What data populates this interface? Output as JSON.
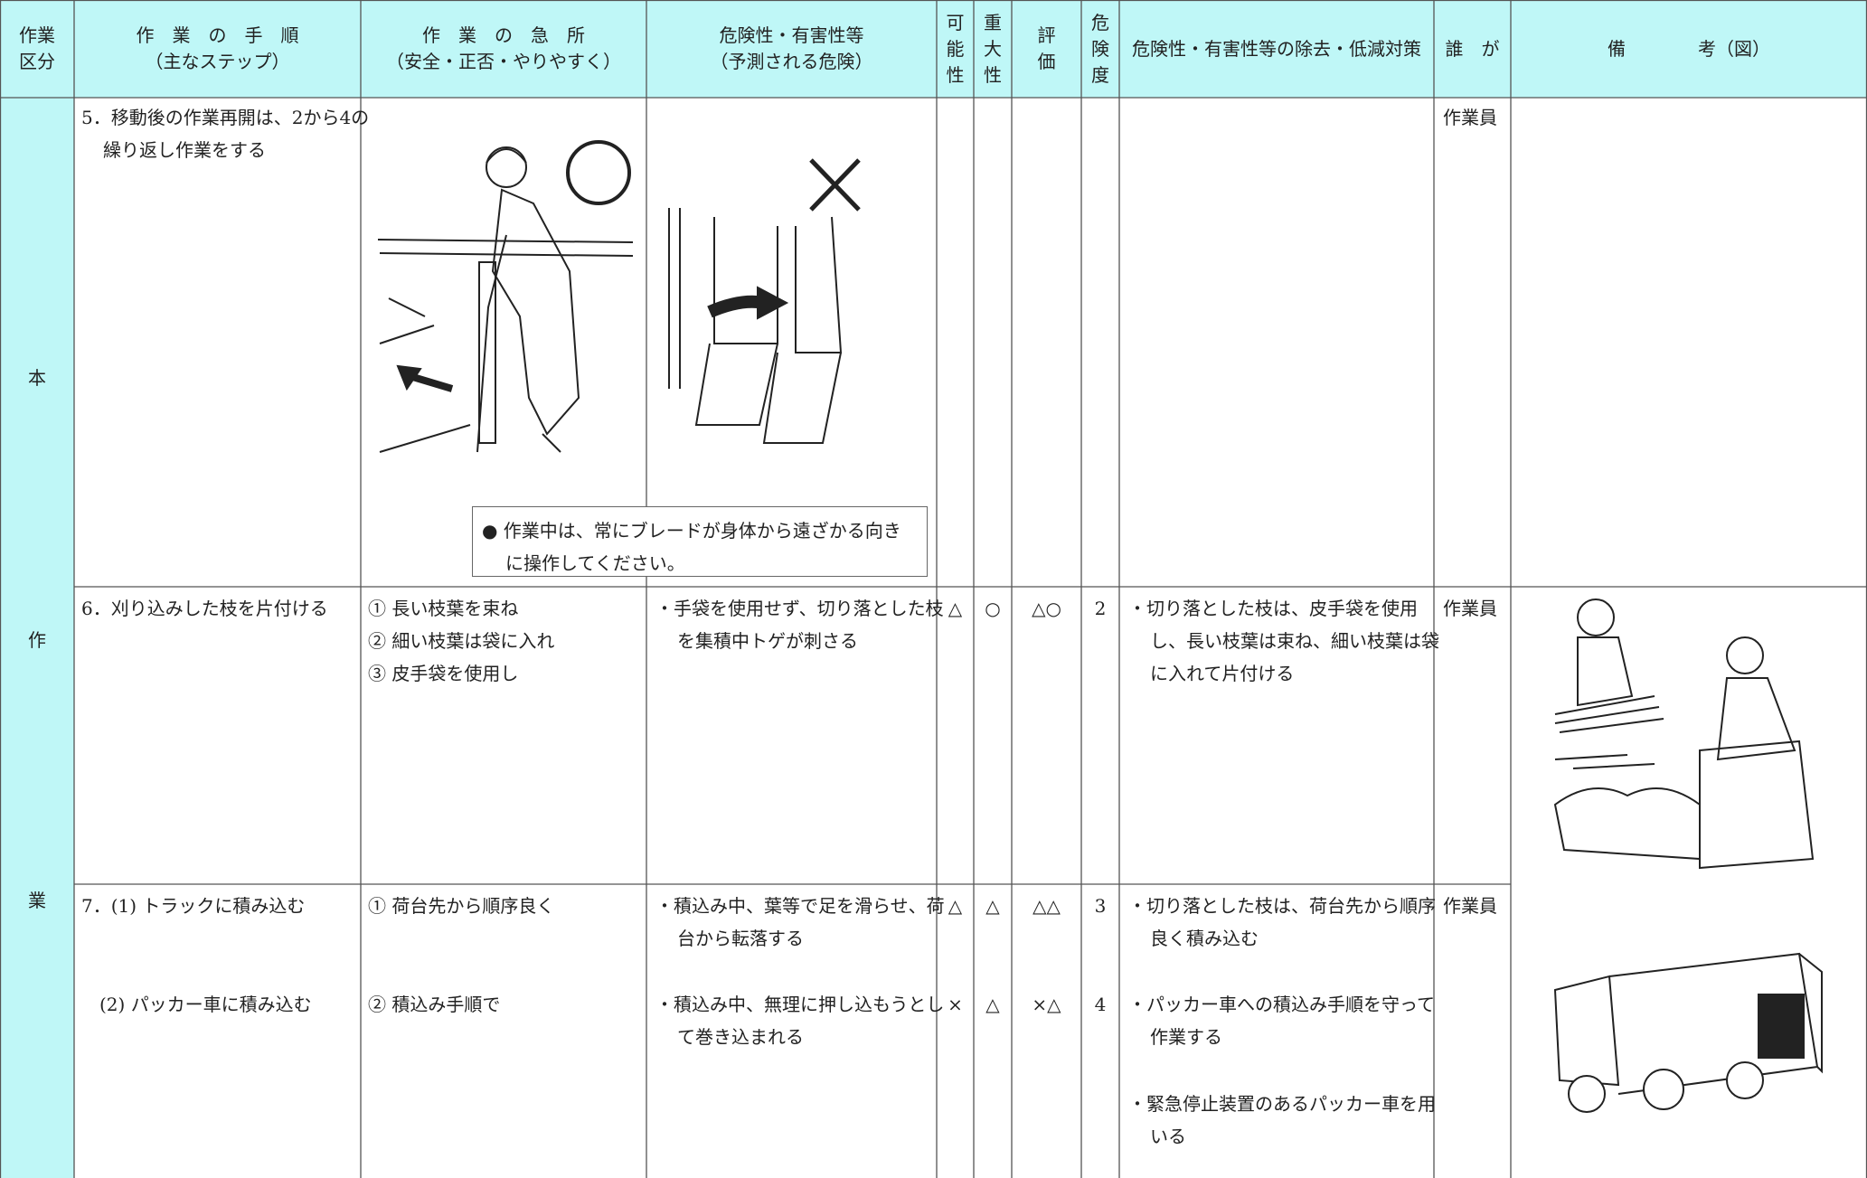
{
  "header": {
    "columns": [
      [
        "作業",
        "区分"
      ],
      [
        "作　業　の　手　順",
        "（主なステップ）"
      ],
      [
        "作　業　の　急　所",
        "（安全・正否・やりやすく）"
      ],
      [
        "危険性・有害性等",
        "（予測される危険）"
      ],
      [
        "可",
        "能",
        "性"
      ],
      [
        "重",
        "大",
        "性"
      ],
      [
        "評",
        "価"
      ],
      [
        "危",
        "険",
        "度"
      ],
      [
        "危険性・有害性等の除去・低減対策"
      ],
      [
        "誰　が"
      ],
      [
        "備　　　　考（図）"
      ]
    ]
  },
  "category": [
    "本",
    "作",
    "業"
  ],
  "rows": [
    {
      "steps": [
        "5．移動後の作業再開は、2から4の繰り返し作業をする"
      ],
      "note": "● 作業中は、常にブレードが身体から遠ざかる向きに操作してください。",
      "who": "作業員"
    },
    {
      "steps": [
        "6．刈り込みした枝を片付ける"
      ],
      "points": [
        "① 長い枝葉を束ね",
        "② 細い枝葉は袋に入れ",
        "③ 皮手袋を使用し"
      ],
      "hazards": [
        "・手袋を使用せず、切り落とした枝を集積中トゲが刺さる"
      ],
      "possibility": [
        "△"
      ],
      "severity": [
        "○"
      ],
      "evaluation": [
        "△○"
      ],
      "risk": [
        2
      ],
      "measures": [
        "・切り落とした枝は、皮手袋を使用し、長い枝葉は束ね、細い枝葉は袋に入れて片付ける"
      ],
      "who": "作業員"
    },
    {
      "steps": [
        "7．(1) トラックに積み込む",
        "(2) パッカー車に積み込む"
      ],
      "points": [
        "① 荷台先から順序良く",
        "② 積込み手順で"
      ],
      "hazards": [
        "・積込み中、葉等で足を滑らせ、荷台から転落する",
        "・積込み中、無理に押し込もうとして巻き込まれる"
      ],
      "possibility": [
        "△",
        "×"
      ],
      "severity": [
        "△",
        "△"
      ],
      "evaluation": [
        "△△",
        "×△"
      ],
      "risk": [
        3,
        4
      ],
      "measures": [
        "・切り落とした枝は、荷台先から順序良く積み込む",
        "・パッカー車への積込み手順を守って作業する",
        "・緊急停止装置のあるパッカー車を用いる"
      ],
      "who": "作業員"
    }
  ]
}
